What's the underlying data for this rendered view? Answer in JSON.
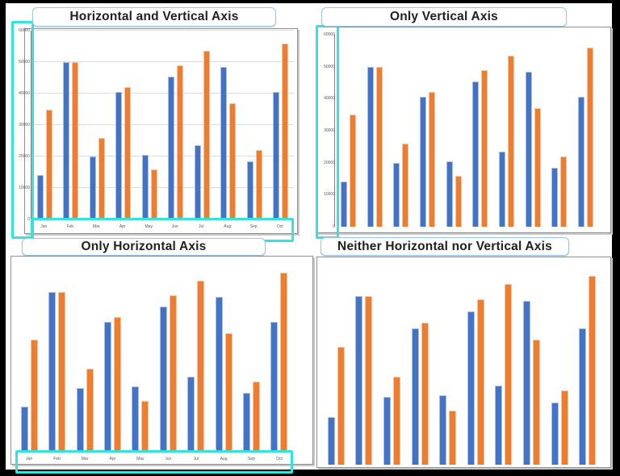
{
  "page": {
    "background": "#ffffff",
    "outer_border_color": "#000000"
  },
  "colors": {
    "series_blue": "#4472C4",
    "series_orange": "#ED7D31",
    "highlight_cyan": "#35E3DC",
    "title_border_blue": "#9DC3E6",
    "frame_border_gray": "#909090",
    "axis_line": "#7F7F7F",
    "gridline": "#DCDCDC",
    "axis_text": "#595959",
    "title_text": "#1f1f1f"
  },
  "chart_data": {
    "type": "bar",
    "categories": [
      "Jan",
      "Feb",
      "Mar",
      "Apr",
      "May",
      "Jun",
      "Jul",
      "Aug",
      "Sep",
      "Oct"
    ],
    "series": [
      {
        "name": "blue",
        "color": "#4472C4",
        "values": [
          14000,
          50000,
          20000,
          40500,
          20500,
          45500,
          23500,
          48500,
          18500,
          40500
        ]
      },
      {
        "name": "orange",
        "color": "#ED7D31",
        "values": [
          35000,
          50000,
          26000,
          42000,
          16000,
          49000,
          53500,
          37000,
          22000,
          56000
        ]
      }
    ],
    "ylim": [
      0,
      60000
    ],
    "yticks": [
      0,
      10000,
      20000,
      30000,
      40000,
      50000,
      60000
    ],
    "legend_position": "none",
    "grid": "horizontal gridlines visible only on first chart",
    "note": "same dataset repeated in all four panels"
  },
  "panels": [
    {
      "id": "tl",
      "title": "Horizontal and Vertical Axis",
      "vertical_axis": true,
      "horizontal_axis": true,
      "highlighted_regions": [
        "vertical-axis",
        "horizontal-axis"
      ]
    },
    {
      "id": "tr",
      "title": "Only Vertical Axis",
      "vertical_axis": true,
      "horizontal_axis": false,
      "highlighted_regions": [
        "vertical-axis"
      ]
    },
    {
      "id": "bl",
      "title": "Only Horizontal Axis",
      "vertical_axis": false,
      "horizontal_axis": true,
      "highlighted_regions": [
        "horizontal-axis"
      ]
    },
    {
      "id": "br",
      "title": "Neither Horizontal nor Vertical Axis",
      "vertical_axis": false,
      "horizontal_axis": false,
      "highlighted_regions": []
    }
  ]
}
